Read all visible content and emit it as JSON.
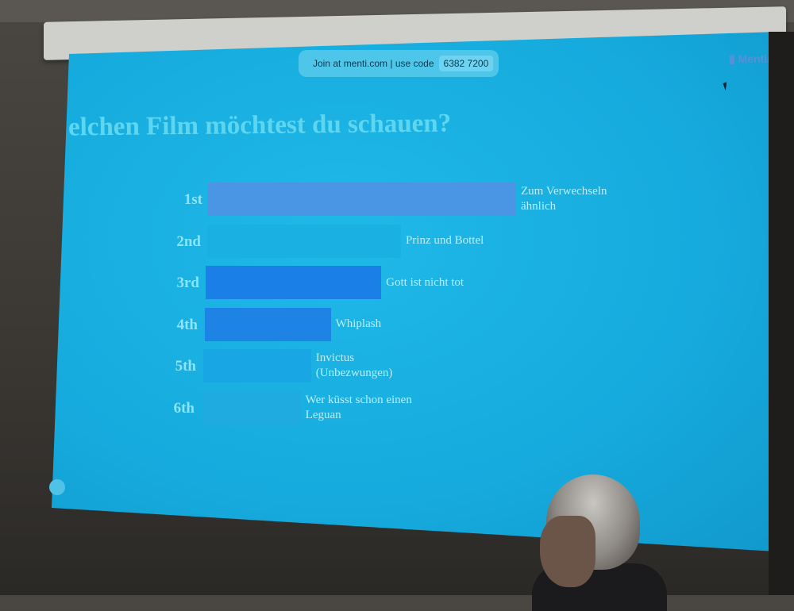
{
  "header": {
    "join_text": "Join at menti.com | use code",
    "code": "6382 7200",
    "brand": "Mentin"
  },
  "colors": {
    "background": "#17aee0",
    "bar_top": "#4a8fe0",
    "bar_mid": "#1a7fe6",
    "bar_low": "#18a3e3"
  },
  "chart_data": {
    "type": "bar",
    "title": "elchen Film möchtest du schauen?",
    "orientation": "horizontal",
    "ranks": [
      "1st",
      "2nd",
      "3rd",
      "4th",
      "5th",
      "6th"
    ],
    "categories": [
      "Zum Verwechseln ähnlich",
      "Prinz und Bottel",
      "Gott ist nicht tot",
      "Whiplash",
      "Invictus (Unbezwungen)",
      "Wer küsst schon einen Leguan"
    ],
    "label_lines": [
      [
        "Zum Verwechseln",
        "ähnlich"
      ],
      [
        "Prinz und Bottel"
      ],
      [
        "Gott ist nicht tot"
      ],
      [
        "Whiplash"
      ],
      [
        "Invictus",
        "(Unbezwungen)"
      ],
      [
        "Wer küsst schon einen",
        "Leguan"
      ]
    ],
    "values": [
      1.0,
      0.63,
      0.57,
      0.41,
      0.35,
      0.32
    ],
    "bar_colors": [
      "#4a96e4",
      "#1ab0e2",
      "#1a7fe6",
      "#1d84e6",
      "#18a6e4",
      "#1fabdf"
    ]
  }
}
